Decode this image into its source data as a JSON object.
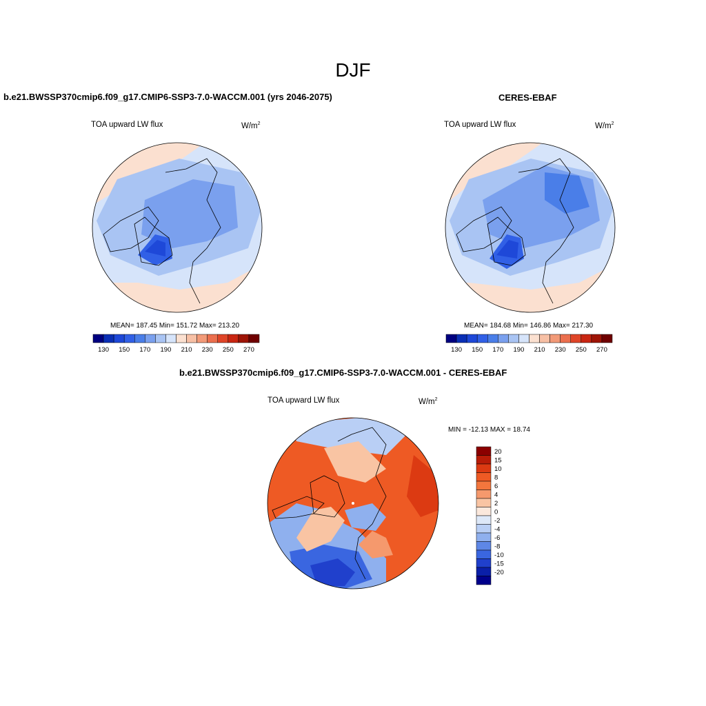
{
  "title": "DJF",
  "panels": [
    {
      "id": "model",
      "case_title": "b.e21.BWSSP370cmip6.f09_g17.CMIP6-SSP3-7.0-WACCM.001 (yrs 2046-2075)",
      "variable": "TOA upward LW flux",
      "units_base": "W/m",
      "units_exp": "2",
      "stats": "MEAN= 187.45  Min= 151.72  Max= 213.20",
      "colorbar_labels": [
        "130",
        "150",
        "170",
        "190",
        "210",
        "230",
        "250",
        "270"
      ]
    },
    {
      "id": "obs",
      "case_title": "CERES-EBAF",
      "variable": "TOA upward LW flux",
      "units_base": "W/m",
      "units_exp": "2",
      "stats": "MEAN= 184.68  Min= 146.86  Max= 217.30",
      "colorbar_labels": [
        "130",
        "150",
        "170",
        "190",
        "210",
        "230",
        "250",
        "270"
      ]
    },
    {
      "id": "diff",
      "case_title": "b.e21.BWSSP370cmip6.f09_g17.CMIP6-SSP3-7.0-WACCM.001 - CERES-EBAF",
      "variable": "TOA upward LW flux",
      "units_base": "W/m",
      "units_exp": "2",
      "stats": "MIN = -12.13 MAX =  18.74",
      "colorbar_labels": [
        "20",
        "15",
        "10",
        "8",
        "6",
        "4",
        "2",
        "0",
        "-2",
        "-4",
        "-6",
        "-8",
        "-10",
        "-15",
        "-20"
      ]
    }
  ],
  "colors": {
    "abs_scale": [
      "#000080",
      "#0a2fb5",
      "#1e48d8",
      "#3160e6",
      "#4a7ee8",
      "#7aa0ee",
      "#a9c4f3",
      "#d6e4fa",
      "#fbe0d0",
      "#f7c0a5",
      "#f29a78",
      "#eb6f4e",
      "#df4528",
      "#c92612",
      "#9e1406",
      "#6f0000"
    ],
    "diff_scale": [
      "#8b0000",
      "#b81c08",
      "#dc3a12",
      "#ee5a24",
      "#f3763d",
      "#f5996d",
      "#f9c4a3",
      "#fbe8dc",
      "#dde8f8",
      "#b9cff5",
      "#8fb0ee",
      "#5e87e6",
      "#3a66e0",
      "#2040cc",
      "#0a1fa8",
      "#00008b"
    ],
    "ocean_low": "#5b86e8",
    "land_low": "#3f6fe3",
    "coast": "#000000"
  }
}
